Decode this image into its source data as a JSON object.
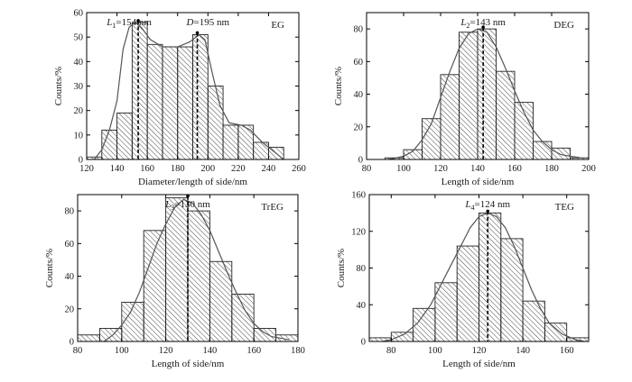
{
  "chart_data": [
    {
      "type": "bar",
      "tag": "EG",
      "xlabel": "Diameter/length of side/nm",
      "ylabel": "Counts/%",
      "xlim": [
        120,
        260
      ],
      "ylim": [
        0,
        60
      ],
      "xticks": [
        120,
        140,
        160,
        180,
        200,
        220,
        240,
        260
      ],
      "yticks": [
        0,
        10,
        20,
        30,
        40,
        50,
        60
      ],
      "bin_width": 10,
      "bins": [
        [
          125,
          1
        ],
        [
          135,
          12
        ],
        [
          145,
          19
        ],
        [
          155,
          56
        ],
        [
          165,
          47
        ],
        [
          175,
          46
        ],
        [
          185,
          46
        ],
        [
          195,
          51
        ],
        [
          205,
          30
        ],
        [
          215,
          14
        ],
        [
          225,
          14
        ],
        [
          235,
          7
        ],
        [
          245,
          5
        ]
      ],
      "fit": [
        [
          125,
          0
        ],
        [
          130,
          4
        ],
        [
          135,
          12
        ],
        [
          140,
          24
        ],
        [
          144,
          45
        ],
        [
          148,
          54
        ],
        [
          152,
          56
        ],
        [
          156,
          54
        ],
        [
          162,
          49
        ],
        [
          170,
          46
        ],
        [
          180,
          46
        ],
        [
          188,
          48
        ],
        [
          194,
          51
        ],
        [
          198,
          49
        ],
        [
          203,
          35
        ],
        [
          208,
          22
        ],
        [
          214,
          15
        ],
        [
          222,
          14
        ],
        [
          228,
          12
        ],
        [
          236,
          7
        ],
        [
          244,
          3
        ],
        [
          250,
          0
        ]
      ],
      "annotations": [
        {
          "id": "L1",
          "sym": "L",
          "sub": "1",
          "rest": "=154 nm",
          "x": 154,
          "y": 56
        },
        {
          "id": "D",
          "sym": "D",
          "sub": "",
          "rest": "=195 nm",
          "x": 193,
          "y": 51
        }
      ]
    },
    {
      "type": "bar",
      "tag": "DEG",
      "xlabel": "Length of side/nm",
      "ylabel": "Counts/%",
      "xlim": [
        80,
        200
      ],
      "ylim": [
        0,
        90
      ],
      "xticks": [
        80,
        100,
        120,
        140,
        160,
        180,
        200
      ],
      "yticks": [
        0,
        20,
        40,
        60,
        80
      ],
      "bin_width": 10,
      "bins": [
        [
          95,
          1
        ],
        [
          105,
          6
        ],
        [
          115,
          25
        ],
        [
          125,
          52
        ],
        [
          135,
          78
        ],
        [
          145,
          80
        ],
        [
          155,
          54
        ],
        [
          165,
          35
        ],
        [
          175,
          11
        ],
        [
          185,
          7
        ],
        [
          195,
          1
        ]
      ],
      "fit": [
        [
          92,
          0
        ],
        [
          100,
          2
        ],
        [
          105,
          5
        ],
        [
          110,
          12
        ],
        [
          115,
          22
        ],
        [
          120,
          38
        ],
        [
          125,
          54
        ],
        [
          130,
          68
        ],
        [
          135,
          77
        ],
        [
          140,
          80
        ],
        [
          145,
          78
        ],
        [
          150,
          69
        ],
        [
          155,
          56
        ],
        [
          160,
          42
        ],
        [
          165,
          29
        ],
        [
          170,
          18
        ],
        [
          175,
          11
        ],
        [
          180,
          6
        ],
        [
          185,
          3
        ],
        [
          190,
          2
        ],
        [
          196,
          1
        ]
      ],
      "annotations": [
        {
          "id": "L2",
          "sym": "L",
          "sub": "2",
          "rest": "=143 nm",
          "x": 143,
          "y": 80
        }
      ]
    },
    {
      "type": "bar",
      "tag": "TrEG",
      "xlabel": "Length of side/nm",
      "ylabel": "Counts/%",
      "xlim": [
        80,
        180
      ],
      "ylim": [
        0,
        90
      ],
      "xticks": [
        80,
        100,
        120,
        140,
        160,
        180
      ],
      "yticks": [
        0,
        20,
        40,
        60,
        80
      ],
      "bin_width": 10,
      "bins": [
        [
          85,
          4
        ],
        [
          95,
          8
        ],
        [
          105,
          24
        ],
        [
          115,
          68
        ],
        [
          125,
          88
        ],
        [
          135,
          80
        ],
        [
          145,
          49
        ],
        [
          155,
          29
        ],
        [
          165,
          8
        ],
        [
          175,
          4
        ]
      ],
      "fit": [
        [
          92,
          0
        ],
        [
          96,
          4
        ],
        [
          100,
          10
        ],
        [
          104,
          18
        ],
        [
          108,
          30
        ],
        [
          112,
          45
        ],
        [
          116,
          60
        ],
        [
          120,
          72
        ],
        [
          124,
          82
        ],
        [
          128,
          87
        ],
        [
          132,
          85
        ],
        [
          136,
          78
        ],
        [
          140,
          68
        ],
        [
          144,
          55
        ],
        [
          148,
          42
        ],
        [
          152,
          30
        ],
        [
          156,
          19
        ],
        [
          160,
          11
        ],
        [
          164,
          6
        ],
        [
          168,
          3
        ],
        [
          176,
          1
        ]
      ],
      "annotations": [
        {
          "id": "L3",
          "sym": "L",
          "sub": "3",
          "rest": "=130 nm",
          "x": 130,
          "y": 88
        }
      ]
    },
    {
      "type": "bar",
      "tag": "TEG",
      "xlabel": "Length of side/nm",
      "ylabel": "Counts/%",
      "xlim": [
        70,
        170
      ],
      "ylim": [
        0,
        160
      ],
      "xticks": [
        80,
        100,
        120,
        140,
        160
      ],
      "yticks": [
        0,
        40,
        80,
        120,
        160
      ],
      "bin_width": 10,
      "bins": [
        [
          75,
          4
        ],
        [
          85,
          10
        ],
        [
          95,
          36
        ],
        [
          105,
          64
        ],
        [
          115,
          104
        ],
        [
          125,
          140
        ],
        [
          135,
          112
        ],
        [
          145,
          44
        ],
        [
          155,
          20
        ],
        [
          165,
          4
        ]
      ],
      "fit": [
        [
          76,
          0
        ],
        [
          80,
          2
        ],
        [
          86,
          8
        ],
        [
          92,
          20
        ],
        [
          98,
          40
        ],
        [
          104,
          68
        ],
        [
          110,
          96
        ],
        [
          116,
          124
        ],
        [
          120,
          136
        ],
        [
          124,
          140
        ],
        [
          128,
          136
        ],
        [
          132,
          124
        ],
        [
          136,
          104
        ],
        [
          140,
          80
        ],
        [
          144,
          56
        ],
        [
          148,
          36
        ],
        [
          152,
          20
        ],
        [
          158,
          8
        ],
        [
          164,
          2
        ],
        [
          168,
          0
        ]
      ],
      "annotations": [
        {
          "id": "L4",
          "sym": "L",
          "sub": "4",
          "rest": "=124 nm",
          "x": 124,
          "y": 140
        }
      ]
    }
  ]
}
